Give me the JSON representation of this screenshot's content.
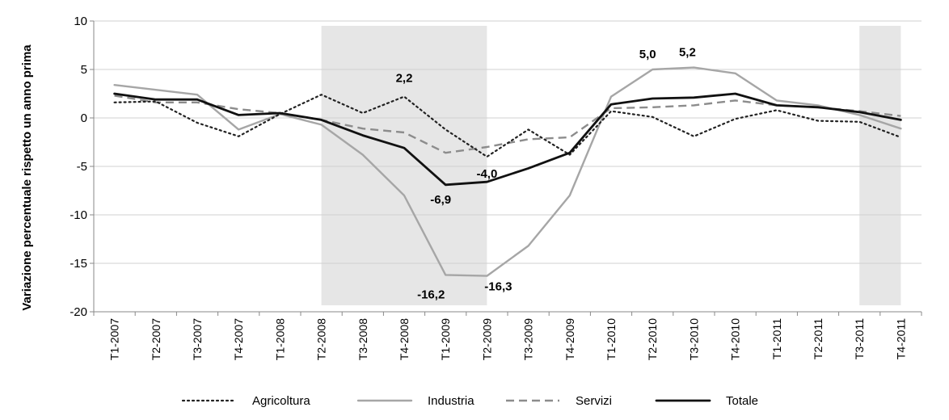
{
  "chart_data": {
    "type": "line",
    "title": "",
    "xlabel": "",
    "ylabel": "Variazione percentuale rispetto un anno prima",
    "ylim": [
      -20,
      10
    ],
    "yticks": [
      10,
      5,
      0,
      -5,
      -10,
      -15,
      -20
    ],
    "grid": "horizontal",
    "legend_position": "bottom",
    "categories": [
      "T1-2007",
      "T2-2007",
      "T3-2007",
      "T4-2007",
      "T1-2008",
      "T2-2008",
      "T3-2008",
      "T4-2008",
      "T1-2009",
      "T2-2009",
      "T3-2009",
      "T4-2009",
      "T1-2010",
      "T2-2010",
      "T3-2010",
      "T4-2010",
      "T1-2011",
      "T2-2011",
      "T3-2011",
      "T4-2011"
    ],
    "shaded_ranges": [
      {
        "from": "T2-2008",
        "to": "T2-2009"
      },
      {
        "from": "T3-2011",
        "to": "T4-2011"
      }
    ],
    "series": [
      {
        "name": "Agricoltura",
        "style": "dotted",
        "color": "#222222",
        "values": [
          1.6,
          1.7,
          -0.5,
          -1.9,
          0.4,
          2.4,
          0.5,
          2.2,
          -1.2,
          -4.0,
          -1.2,
          -3.8,
          0.7,
          0.1,
          -1.9,
          -0.1,
          0.8,
          -0.3,
          -0.4,
          -2.0
        ]
      },
      {
        "name": "Industria",
        "style": "solid",
        "color": "#a6a6a6",
        "values": [
          3.4,
          2.9,
          2.4,
          -1.2,
          0.4,
          -0.7,
          -3.8,
          -8.0,
          -16.2,
          -16.3,
          -13.2,
          -8.0,
          2.2,
          5.0,
          5.2,
          4.6,
          1.8,
          1.3,
          0.3,
          -1.1
        ]
      },
      {
        "name": "Servizi",
        "style": "dashed",
        "color": "#8c8c8c",
        "values": [
          2.3,
          1.6,
          1.6,
          0.9,
          0.5,
          -0.2,
          -1.1,
          -1.5,
          -3.6,
          -3.0,
          -2.2,
          -2.0,
          1.0,
          1.1,
          1.3,
          1.8,
          1.3,
          1.1,
          0.7,
          0.2
        ]
      },
      {
        "name": "Totale",
        "style": "solid-bold",
        "color": "#111111",
        "values": [
          2.5,
          1.9,
          1.9,
          0.3,
          0.5,
          -0.2,
          -1.8,
          -3.1,
          -6.9,
          -6.6,
          -5.2,
          -3.6,
          1.4,
          2.0,
          2.1,
          2.5,
          1.3,
          1.1,
          0.6,
          -0.2
        ]
      }
    ],
    "annotations": [
      {
        "text": "2,2",
        "category": "T4-2008",
        "series": "Agricoltura"
      },
      {
        "text": "-4,0",
        "category": "T2-2009",
        "series": "Agricoltura"
      },
      {
        "text": "-6,9",
        "category": "T1-2009",
        "series": "Totale"
      },
      {
        "text": "-16,2",
        "category": "T1-2009",
        "series": "Industria"
      },
      {
        "text": "-16,3",
        "category": "T2-2009",
        "series": "Industria"
      },
      {
        "text": "5,0",
        "category": "T2-2010",
        "series": "Industria"
      },
      {
        "text": "5,2",
        "category": "T3-2010",
        "series": "Industria"
      }
    ]
  }
}
